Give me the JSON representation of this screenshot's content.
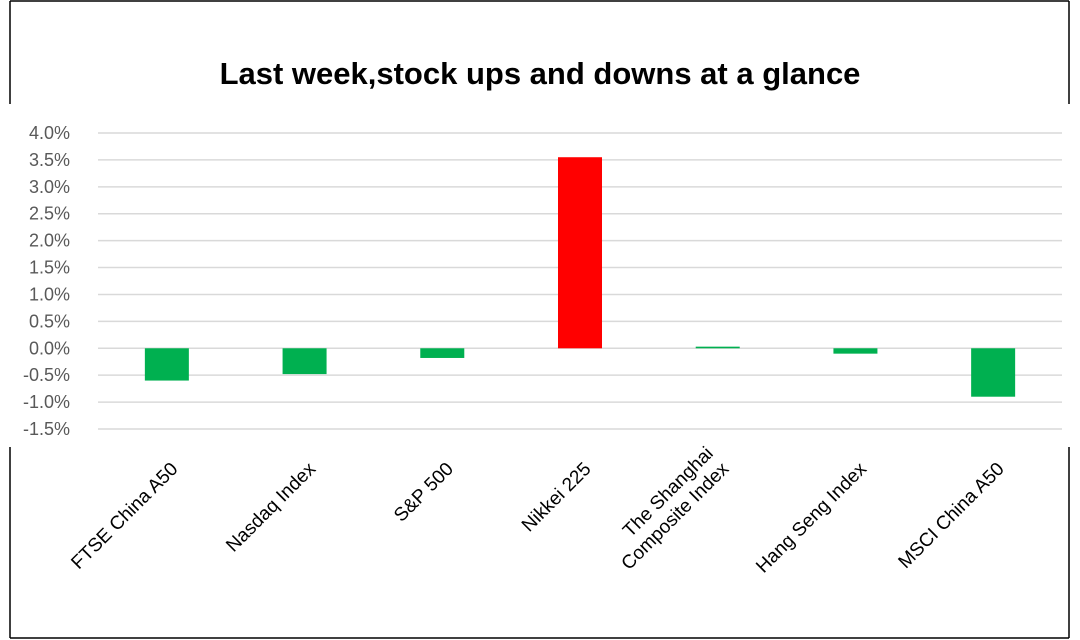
{
  "chart_data": {
    "type": "bar",
    "title": "Last week,stock ups and downs at a glance",
    "xlabel": "",
    "ylabel": "",
    "categories": [
      [
        "FTSE China A50"
      ],
      [
        "Nasdaq Index"
      ],
      [
        "S&P 500"
      ],
      [
        "Nikkei 225"
      ],
      [
        "The Shanghai",
        "Composite Index"
      ],
      [
        "Hang Seng Index"
      ],
      [
        "MSCI China A50"
      ]
    ],
    "values": [
      -0.6,
      -0.48,
      -0.18,
      3.55,
      0.03,
      -0.1,
      -0.9
    ],
    "ylim": [
      -1.5,
      4.0
    ],
    "yticks": [
      "4.0%",
      "3.5%",
      "3.0%",
      "2.5%",
      "2.0%",
      "1.5%",
      "1.0%",
      "0.5%",
      "0.0%",
      "-0.5%",
      "-1.0%",
      "-1.5%"
    ],
    "grid": true,
    "legend": "none",
    "colors": {
      "up": "#ff0000",
      "down": "#00b050",
      "grid": "#d9d9d9",
      "frame": "#000000"
    }
  }
}
